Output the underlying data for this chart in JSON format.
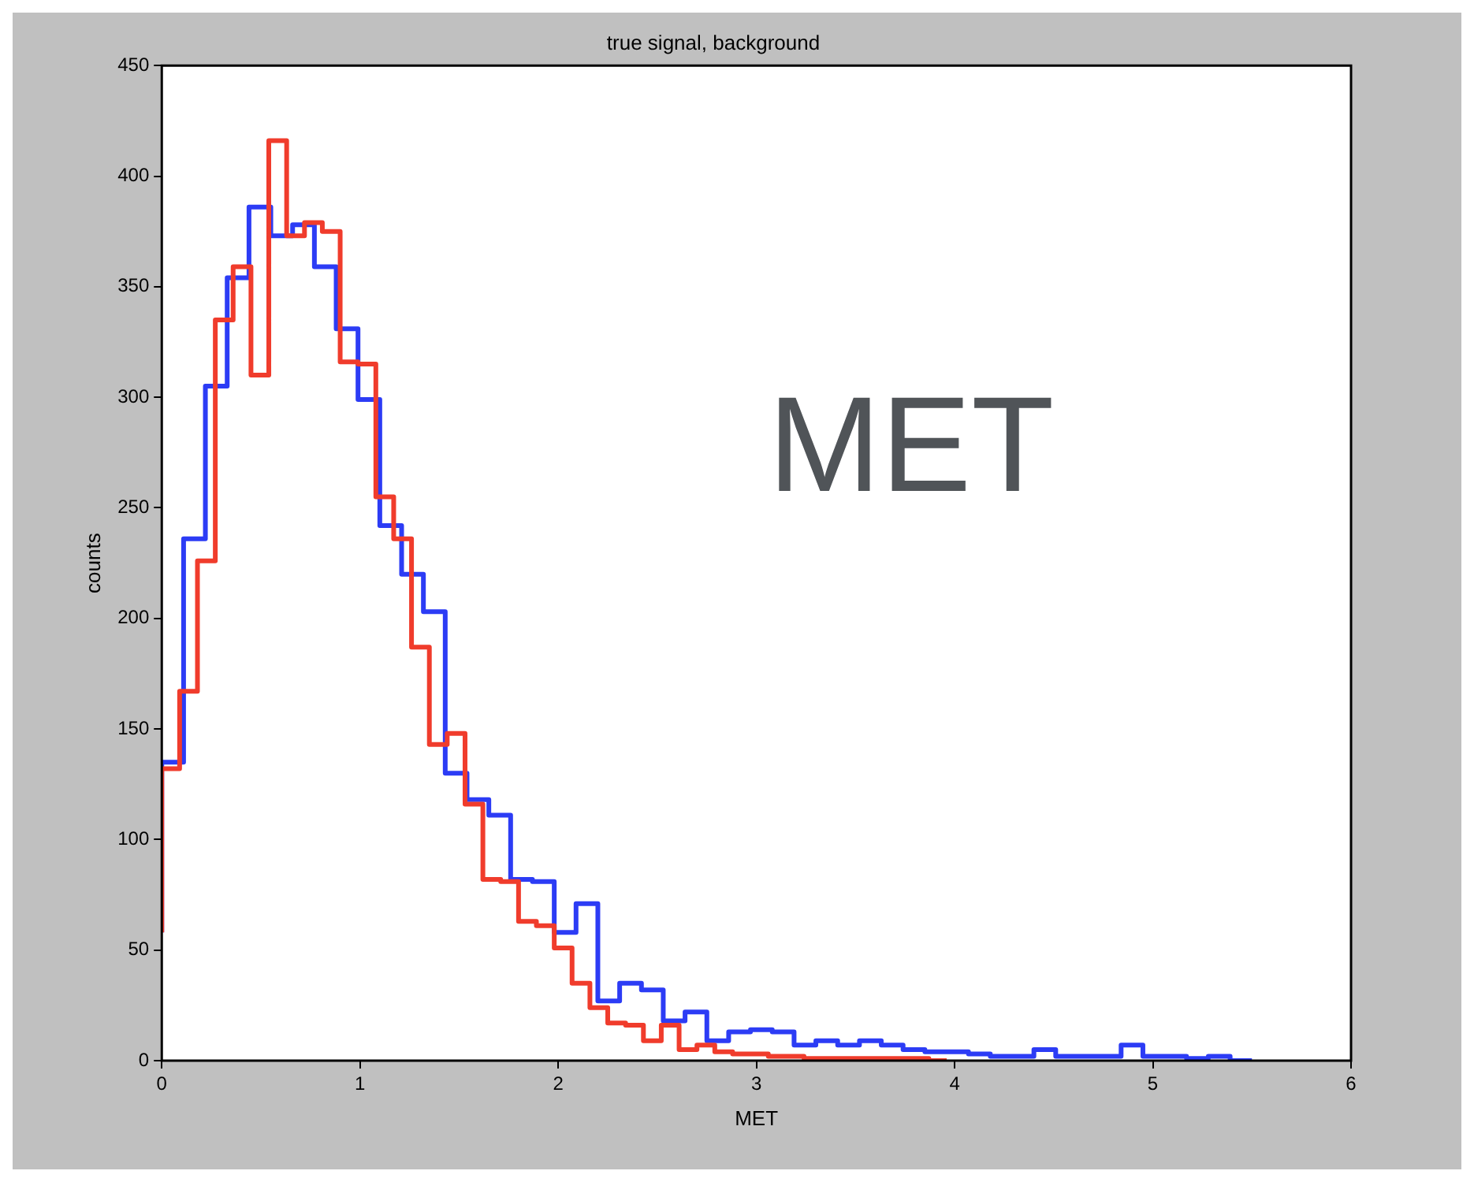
{
  "chart_data": {
    "type": "step",
    "title": "true signal, background",
    "xlabel": "MET",
    "ylabel": "counts",
    "annotations": [
      "MET"
    ],
    "xlim": [
      0,
      6
    ],
    "xticks": [
      0,
      1,
      2,
      3,
      4,
      5,
      6
    ],
    "ylim": [
      0,
      450
    ],
    "yticks": [
      0,
      50,
      100,
      150,
      200,
      250,
      300,
      350,
      400,
      450
    ],
    "grid": false,
    "legend": false,
    "marker": "none",
    "series": [
      {
        "color": "#f03c2c",
        "x": [
          0,
          0.09,
          0.18,
          0.27,
          0.36,
          0.45,
          0.54,
          0.63,
          0.72,
          0.81,
          0.9,
          0.99,
          1.08,
          1.17,
          1.26,
          1.35,
          1.44,
          1.53,
          1.62,
          1.71,
          1.8,
          1.89,
          1.98,
          2.07,
          2.16,
          2.25,
          2.34,
          2.43,
          2.52,
          2.61,
          2.7,
          2.79,
          2.88,
          2.97,
          3.06,
          3.15,
          3.24,
          3.33,
          3.42,
          3.51,
          3.6,
          3.69,
          3.78,
          3.87,
          3.96
        ],
        "values": [
          58,
          132,
          167,
          226,
          335,
          359,
          310,
          416,
          373,
          379,
          375,
          316,
          315,
          255,
          236,
          187,
          143,
          148,
          116,
          82,
          81,
          63,
          61,
          51,
          35,
          24,
          17,
          16,
          9,
          16,
          5,
          7,
          4,
          3,
          3,
          2,
          2,
          1,
          1,
          1,
          1,
          1,
          1,
          1,
          0
        ]
      },
      {
        "color": "#2c3cf5",
        "x": [
          0,
          0.11,
          0.22,
          0.33,
          0.44,
          0.55,
          0.66,
          0.77,
          0.88,
          0.99,
          1.1,
          1.21,
          1.32,
          1.43,
          1.54,
          1.65,
          1.76,
          1.87,
          1.98,
          2.09,
          2.2,
          2.31,
          2.42,
          2.53,
          2.64,
          2.75,
          2.86,
          2.97,
          3.08,
          3.19,
          3.3,
          3.41,
          3.52,
          3.63,
          3.74,
          3.85,
          3.96,
          4.07,
          4.18,
          4.29,
          4.4,
          4.51,
          4.62,
          4.73,
          4.84,
          4.95,
          5.06,
          5.17,
          5.28,
          5.39,
          5.5
        ],
        "values": [
          58,
          135,
          236,
          305,
          354,
          386,
          373,
          378,
          359,
          331,
          299,
          242,
          220,
          203,
          130,
          118,
          111,
          82,
          81,
          58,
          71,
          27,
          35,
          32,
          18,
          22,
          9,
          13,
          14,
          13,
          7,
          9,
          7,
          9,
          7,
          5,
          4,
          4,
          3,
          2,
          2,
          5,
          2,
          2,
          2,
          7,
          2,
          2,
          1,
          2,
          0
        ]
      }
    ]
  }
}
